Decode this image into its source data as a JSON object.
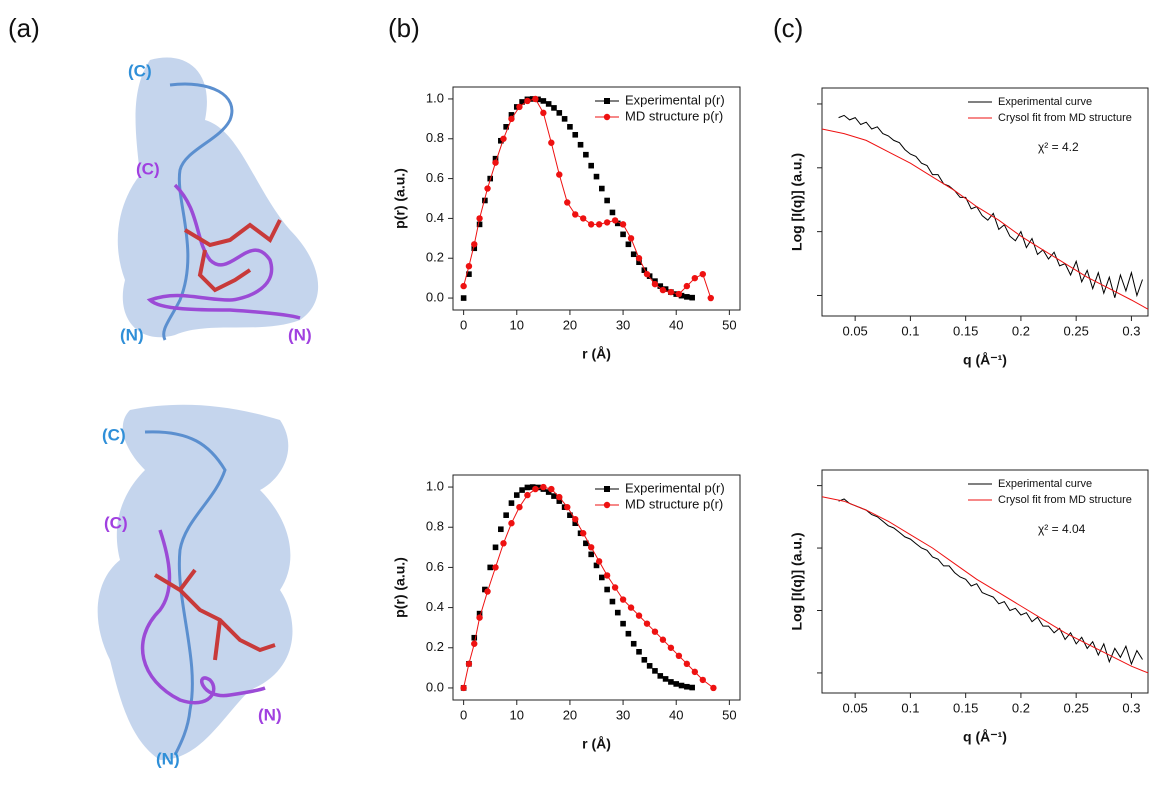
{
  "panel_labels": [
    "(a)",
    "(b)",
    "(c)"
  ],
  "structure_labels": [
    [
      "(C)",
      "(C)",
      "(N)",
      "(N)"
    ],
    [
      "(C)",
      "(C)",
      "(N)",
      "(N)"
    ]
  ],
  "chart_data": [
    {
      "type": "line",
      "x_label": "r (Å)",
      "y_label": "p(r) (a.u.)",
      "xlim": [
        -2,
        52
      ],
      "xticks": [
        0,
        10,
        20,
        30,
        40,
        50
      ],
      "ylim": [
        -0.06,
        1.06
      ],
      "yticks": [
        {
          "value": 0,
          "label": "0.0"
        },
        {
          "value": 0.2,
          "label": "0.2"
        },
        {
          "value": 0.4,
          "label": "0.4"
        },
        {
          "value": 0.6,
          "label": "0.6"
        },
        {
          "value": 0.8,
          "label": "0.8"
        },
        {
          "value": 1,
          "label": "1.0"
        }
      ],
      "show_ytick_labels": true,
      "legend": "upper right",
      "series": [
        {
          "name": "Experimental p(r)",
          "color": "#000000",
          "marker": "square",
          "line": false,
          "x": [
            0,
            1,
            2,
            3,
            4,
            5,
            6,
            7,
            8,
            9,
            10,
            11,
            12,
            13,
            14,
            15,
            16,
            17,
            18,
            19,
            20,
            21,
            22,
            23,
            24,
            25,
            26,
            27,
            28,
            29,
            30,
            31,
            32,
            33,
            34,
            35,
            36,
            37,
            38,
            39,
            40,
            41,
            42,
            43
          ],
          "values": [
            0,
            0.12,
            0.25,
            0.37,
            0.49,
            0.6,
            0.7,
            0.79,
            0.86,
            0.92,
            0.96,
            0.985,
            0.998,
            1,
            0.998,
            0.99,
            0.975,
            0.955,
            0.93,
            0.9,
            0.86,
            0.82,
            0.77,
            0.72,
            0.665,
            0.61,
            0.55,
            0.49,
            0.43,
            0.375,
            0.32,
            0.27,
            0.22,
            0.18,
            0.14,
            0.11,
            0.085,
            0.06,
            0.045,
            0.03,
            0.02,
            0.012,
            0.006,
            0.002
          ]
        },
        {
          "name": "MD structure p(r)",
          "color": "#ee1111",
          "marker": "circle",
          "line": true,
          "x": [
            0,
            1,
            2,
            3,
            4.5,
            6,
            7.5,
            9,
            10.5,
            12,
            13.5,
            15,
            16.5,
            18,
            19.5,
            21,
            22.5,
            24,
            25.5,
            27,
            28.5,
            30,
            31.5,
            33,
            34.5,
            36,
            37.5,
            39,
            40.5,
            42,
            43.5,
            45,
            46.5
          ],
          "values": [
            0.06,
            0.16,
            0.27,
            0.4,
            0.55,
            0.68,
            0.8,
            0.9,
            0.96,
            0.99,
            1,
            0.93,
            0.78,
            0.62,
            0.48,
            0.42,
            0.4,
            0.37,
            0.37,
            0.38,
            0.39,
            0.37,
            0.3,
            0.2,
            0.12,
            0.07,
            0.04,
            0.03,
            0.02,
            0.06,
            0.1,
            0.12,
            0
          ]
        }
      ]
    },
    {
      "type": "line",
      "x_label": "q (Å⁻¹)",
      "y_label": "Log [I(q)] (a.u.)",
      "xlim": [
        0.02,
        0.315
      ],
      "xticks": [
        0.05,
        0.1,
        0.15,
        0.2,
        0.25,
        0.3
      ],
      "ylim": [
        0,
        1
      ],
      "yticks": [
        0.09,
        0.37,
        0.65,
        0.93
      ],
      "show_ytick_labels": false,
      "legend": "upper right",
      "annotation": "χ² = 4.2",
      "series": [
        {
          "name": "Experimental curve",
          "color": "#000000",
          "line": true,
          "x": [
            0.035,
            0.04,
            0.045,
            0.05,
            0.055,
            0.06,
            0.065,
            0.07,
            0.075,
            0.08,
            0.085,
            0.09,
            0.095,
            0.1,
            0.105,
            0.11,
            0.115,
            0.12,
            0.125,
            0.13,
            0.135,
            0.14,
            0.145,
            0.15,
            0.155,
            0.16,
            0.165,
            0.17,
            0.175,
            0.18,
            0.185,
            0.19,
            0.195,
            0.2,
            0.205,
            0.21,
            0.215,
            0.22,
            0.225,
            0.23,
            0.235,
            0.24,
            0.245,
            0.25,
            0.255,
            0.26,
            0.265,
            0.27,
            0.275,
            0.28,
            0.285,
            0.29,
            0.295,
            0.3,
            0.305,
            0.31
          ],
          "values": [
            0.87,
            0.88,
            0.86,
            0.87,
            0.84,
            0.85,
            0.82,
            0.83,
            0.8,
            0.79,
            0.77,
            0.76,
            0.73,
            0.71,
            0.7,
            0.67,
            0.66,
            0.62,
            0.62,
            0.58,
            0.57,
            0.55,
            0.52,
            0.52,
            0.47,
            0.48,
            0.44,
            0.42,
            0.45,
            0.38,
            0.4,
            0.35,
            0.33,
            0.37,
            0.3,
            0.34,
            0.27,
            0.29,
            0.25,
            0.28,
            0.22,
            0.23,
            0.18,
            0.24,
            0.15,
            0.2,
            0.12,
            0.19,
            0.1,
            0.17,
            0.08,
            0.18,
            0.11,
            0.19,
            0.09,
            0.16
          ]
        },
        {
          "name": "Crysol fit from MD structure",
          "color": "#ee1111",
          "line": true,
          "x": [
            0.02,
            0.04,
            0.06,
            0.08,
            0.1,
            0.12,
            0.14,
            0.16,
            0.18,
            0.2,
            0.22,
            0.24,
            0.26,
            0.28,
            0.3,
            0.315
          ],
          "values": [
            0.82,
            0.8,
            0.77,
            0.72,
            0.67,
            0.61,
            0.55,
            0.48,
            0.42,
            0.35,
            0.29,
            0.23,
            0.17,
            0.12,
            0.07,
            0.03
          ]
        }
      ]
    },
    {
      "type": "line",
      "x_label": "r (Å)",
      "y_label": "p(r) (a.u.)",
      "xlim": [
        -2,
        52
      ],
      "xticks": [
        0,
        10,
        20,
        30,
        40,
        50
      ],
      "ylim": [
        -0.06,
        1.06
      ],
      "yticks": [
        {
          "value": 0,
          "label": "0.0"
        },
        {
          "value": 0.2,
          "label": "0.2"
        },
        {
          "value": 0.4,
          "label": "0.4"
        },
        {
          "value": 0.6,
          "label": "0.6"
        },
        {
          "value": 0.8,
          "label": "0.8"
        },
        {
          "value": 1,
          "label": "1.0"
        }
      ],
      "show_ytick_labels": true,
      "legend": "upper right",
      "series": [
        {
          "name": "Experimental p(r)",
          "color": "#000000",
          "marker": "square",
          "line": false,
          "x": [
            0,
            1,
            2,
            3,
            4,
            5,
            6,
            7,
            8,
            9,
            10,
            11,
            12,
            13,
            14,
            15,
            16,
            17,
            18,
            19,
            20,
            21,
            22,
            23,
            24,
            25,
            26,
            27,
            28,
            29,
            30,
            31,
            32,
            33,
            34,
            35,
            36,
            37,
            38,
            39,
            40,
            41,
            42,
            43
          ],
          "values": [
            0,
            0.12,
            0.25,
            0.37,
            0.49,
            0.6,
            0.7,
            0.79,
            0.86,
            0.92,
            0.96,
            0.985,
            0.998,
            1,
            0.998,
            0.99,
            0.975,
            0.955,
            0.93,
            0.9,
            0.86,
            0.82,
            0.77,
            0.72,
            0.665,
            0.61,
            0.55,
            0.49,
            0.43,
            0.375,
            0.32,
            0.27,
            0.22,
            0.18,
            0.14,
            0.11,
            0.085,
            0.06,
            0.045,
            0.03,
            0.02,
            0.012,
            0.006,
            0.002
          ]
        },
        {
          "name": "MD structure p(r)",
          "color": "#ee1111",
          "marker": "circle",
          "line": true,
          "x": [
            0,
            1,
            2,
            3,
            4.5,
            6,
            7.5,
            9,
            10.5,
            12,
            13.5,
            15,
            16.5,
            18,
            19.5,
            21,
            22.5,
            24,
            25.5,
            27,
            28.5,
            30,
            31.5,
            33,
            34.5,
            36,
            37.5,
            39,
            40.5,
            42,
            43.5,
            45,
            47
          ],
          "values": [
            0,
            0.12,
            0.22,
            0.35,
            0.48,
            0.6,
            0.72,
            0.82,
            0.9,
            0.96,
            0.99,
            1,
            0.99,
            0.95,
            0.9,
            0.84,
            0.77,
            0.7,
            0.63,
            0.56,
            0.5,
            0.44,
            0.4,
            0.36,
            0.32,
            0.28,
            0.24,
            0.2,
            0.16,
            0.12,
            0.08,
            0.04,
            0
          ]
        }
      ]
    },
    {
      "type": "line",
      "x_label": "q (Å⁻¹)",
      "y_label": "Log [I(q)] (a.u.)",
      "xlim": [
        0.02,
        0.315
      ],
      "xticks": [
        0.05,
        0.1,
        0.15,
        0.2,
        0.25,
        0.3
      ],
      "ylim": [
        0,
        1
      ],
      "yticks": [
        0.09,
        0.37,
        0.65,
        0.93
      ],
      "show_ytick_labels": false,
      "legend": "upper right",
      "annotation": "χ² = 4.04",
      "series": [
        {
          "name": "Experimental curve",
          "color": "#000000",
          "line": true,
          "x": [
            0.035,
            0.04,
            0.045,
            0.05,
            0.055,
            0.06,
            0.065,
            0.07,
            0.075,
            0.08,
            0.085,
            0.09,
            0.095,
            0.1,
            0.105,
            0.11,
            0.115,
            0.12,
            0.125,
            0.13,
            0.135,
            0.14,
            0.145,
            0.15,
            0.155,
            0.16,
            0.165,
            0.17,
            0.175,
            0.18,
            0.185,
            0.19,
            0.195,
            0.2,
            0.205,
            0.21,
            0.215,
            0.22,
            0.225,
            0.23,
            0.235,
            0.24,
            0.245,
            0.25,
            0.255,
            0.26,
            0.265,
            0.27,
            0.275,
            0.28,
            0.285,
            0.29,
            0.295,
            0.3,
            0.305,
            0.31
          ],
          "values": [
            0.86,
            0.87,
            0.85,
            0.84,
            0.83,
            0.82,
            0.8,
            0.79,
            0.77,
            0.75,
            0.74,
            0.72,
            0.7,
            0.69,
            0.67,
            0.65,
            0.64,
            0.61,
            0.6,
            0.57,
            0.57,
            0.54,
            0.52,
            0.51,
            0.48,
            0.49,
            0.45,
            0.44,
            0.43,
            0.4,
            0.41,
            0.37,
            0.38,
            0.35,
            0.36,
            0.32,
            0.34,
            0.3,
            0.3,
            0.27,
            0.29,
            0.24,
            0.27,
            0.22,
            0.25,
            0.2,
            0.23,
            0.17,
            0.22,
            0.14,
            0.2,
            0.16,
            0.21,
            0.13,
            0.19,
            0.15
          ]
        },
        {
          "name": "Crysol fit from MD structure",
          "color": "#ee1111",
          "line": true,
          "x": [
            0.02,
            0.04,
            0.06,
            0.08,
            0.1,
            0.12,
            0.14,
            0.16,
            0.18,
            0.2,
            0.22,
            0.24,
            0.26,
            0.28,
            0.3,
            0.315
          ],
          "values": [
            0.88,
            0.86,
            0.82,
            0.77,
            0.71,
            0.65,
            0.58,
            0.51,
            0.45,
            0.39,
            0.33,
            0.27,
            0.22,
            0.17,
            0.12,
            0.09
          ]
        }
      ]
    }
  ]
}
